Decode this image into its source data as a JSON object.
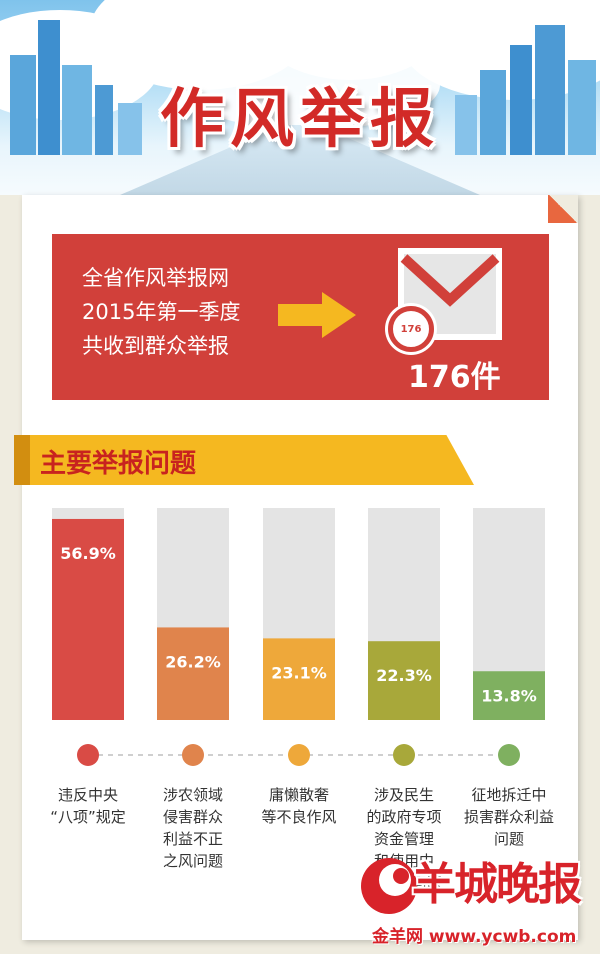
{
  "header": {
    "title": "作风举报"
  },
  "summary": {
    "lines": [
      "全省作风举报网",
      "2015年第一季度",
      "共收到群众举报"
    ],
    "badge_value": "176",
    "count_label": "176件"
  },
  "section": {
    "title": "主要举报问题"
  },
  "colors": {
    "red": "#d1403a",
    "accent_yellow": "#f5b820",
    "bar_bg": "#e4e4e4"
  },
  "chart_data": {
    "type": "bar",
    "categories": [
      "违反中央\n“八项”规定",
      "涉农领域\n侵害群众\n利益不正\n之风问题",
      "庸懒散奢\n等不良作风",
      "涉及民生\n的政府专项\n资金管理\n和使用中\n存在的问题",
      "征地拆迁中\n损害群众利益\n问题"
    ],
    "values": [
      56.9,
      26.2,
      23.1,
      22.3,
      13.8
    ],
    "data_labels": [
      "56.9%",
      "26.2%",
      "23.1%",
      "22.3%",
      "13.8%"
    ],
    "bar_colors": [
      "#d94b45",
      "#e0844c",
      "#eea83a",
      "#a8a83a",
      "#7fb060"
    ],
    "ylim": [
      0,
      60
    ],
    "grid": false,
    "legend": "none"
  },
  "watermark": {
    "brand": "羊城晚报",
    "url": "金羊网 www.ycwb.com"
  }
}
